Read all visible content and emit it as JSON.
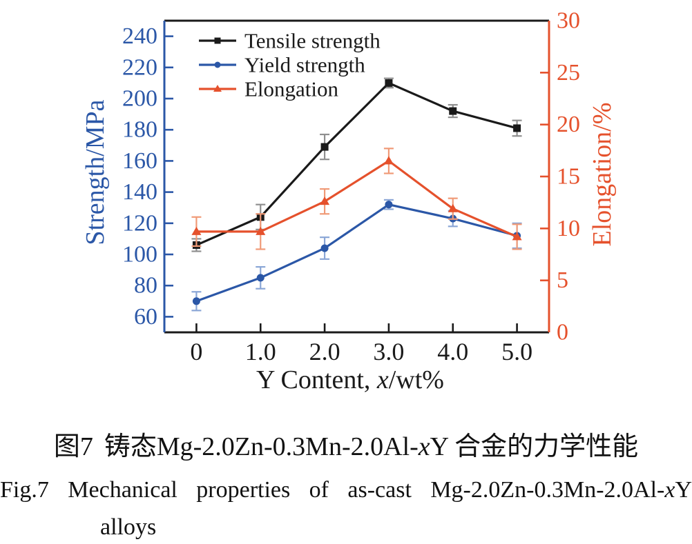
{
  "chart_data": {
    "type": "line",
    "title": "",
    "x": [
      0,
      1.0,
      2.0,
      3.0,
      4.0,
      5.0
    ],
    "x_tick_labels": [
      "0",
      "1.0",
      "2.0",
      "3.0",
      "4.0",
      "5.0"
    ],
    "xlim": [
      -0.5,
      5.5
    ],
    "xlabel": {
      "prefix": "Y Content, ",
      "italic_var": "x",
      "suffix": "/wt%"
    },
    "grid": false,
    "left_axis": {
      "label": "Strength/MPa",
      "color": "#2b57a7",
      "lim": [
        50,
        250
      ],
      "ticks": [
        60,
        80,
        100,
        120,
        140,
        160,
        180,
        200,
        220,
        240
      ]
    },
    "right_axis": {
      "label": "Elongation/%",
      "color": "#e5512c",
      "lim": [
        0,
        30
      ],
      "tick_labels": [
        0,
        5,
        10,
        15,
        20,
        25,
        30
      ],
      "tick_marks": [
        5,
        10,
        15,
        20,
        25
      ]
    },
    "legend": {
      "position": "top-left"
    },
    "series": [
      {
        "name": "Tensile strength",
        "axis": "left",
        "color": "#1a1a1a",
        "errbar_color": "#8f8f8f",
        "marker": "square",
        "values": [
          106,
          124,
          169,
          210,
          192,
          181
        ],
        "errors": [
          4,
          8,
          8,
          3,
          4,
          5
        ]
      },
      {
        "name": "Yield strength",
        "axis": "left",
        "color": "#2b57a7",
        "errbar_color": "#8aa6d6",
        "marker": "circle",
        "values": [
          70,
          85,
          104,
          132,
          123,
          112
        ],
        "errors": [
          6,
          7,
          7,
          3,
          5,
          8
        ]
      },
      {
        "name": "Elongation",
        "axis": "right",
        "color": "#e5512c",
        "errbar_color": "#f09a77",
        "marker": "triangle",
        "values": [
          9.7,
          9.7,
          12.6,
          16.5,
          11.9,
          9.2
        ],
        "errors": [
          1.4,
          1.7,
          1.2,
          1.2,
          1.0,
          1.2
        ]
      }
    ]
  },
  "captions": {
    "chinese": {
      "fig_label": "图7",
      "body_prefix": "铸态Mg-2.0Zn-0.3Mn-2.0Al-",
      "italic_var": "x",
      "body_suffix": "Y 合金的力学性能"
    },
    "english": {
      "fig_label": "Fig.7",
      "line1_prefix": "Mechanical properties of as-cast Mg-2.0Zn-0.3Mn-2.0Al-",
      "italic_var": "x",
      "line1_suffix": "Y",
      "line2": "alloys"
    }
  }
}
